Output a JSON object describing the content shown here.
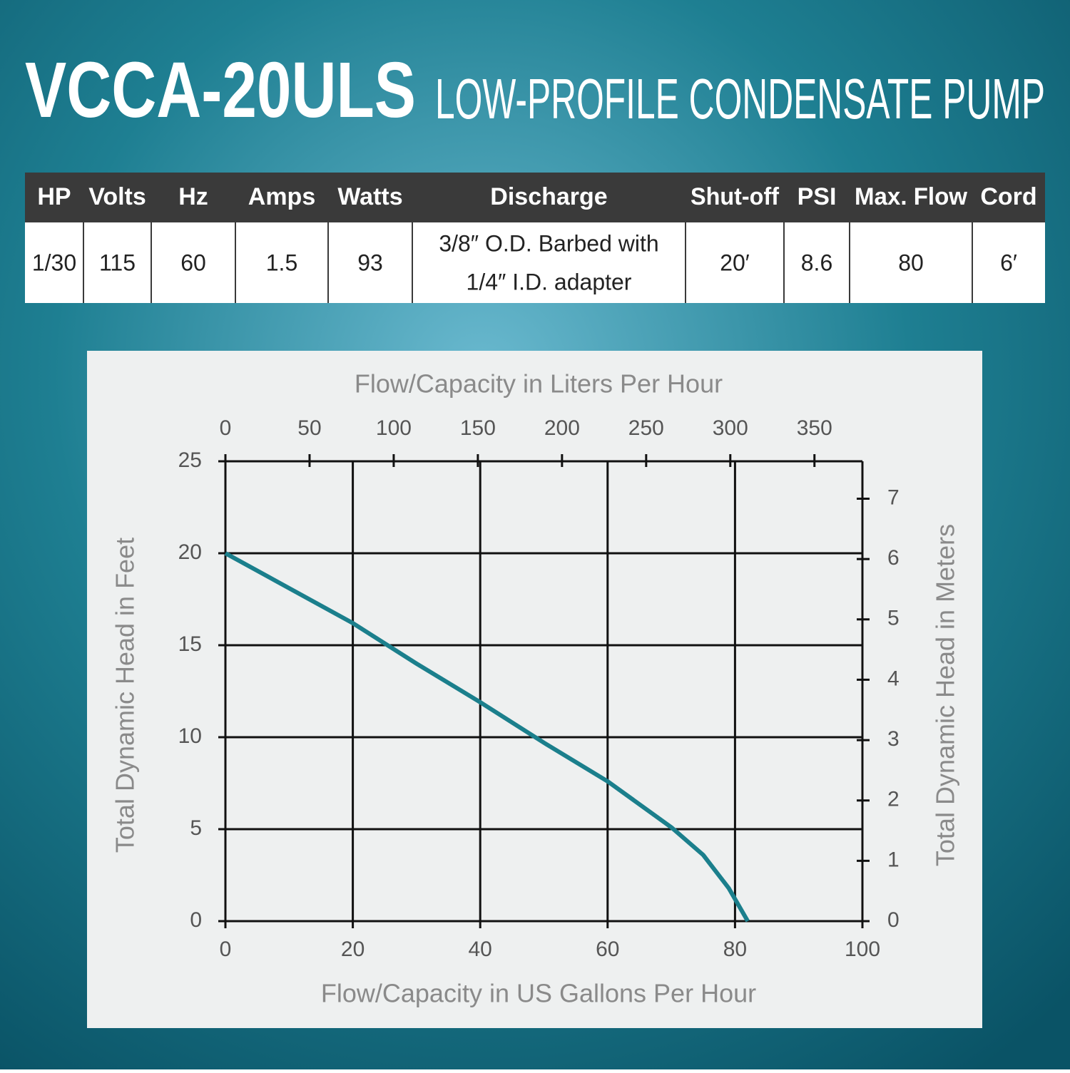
{
  "header": {
    "model": "VCCA-20ULS",
    "subtitle": "LOW-PROFILE CONDENSATE PUMP"
  },
  "table": {
    "columns": [
      "HP",
      "Volts",
      "Hz",
      "Amps",
      "Watts",
      "Discharge",
      "Shut-off",
      "PSI",
      "Max. Flow",
      "Cord"
    ],
    "rows": [
      [
        "1/30",
        "115",
        "60",
        "1.5",
        "93",
        [
          "3/8″ O.D. Barbed with",
          "1/4″ I.D. adapter"
        ],
        "20′",
        "8.6",
        "80",
        "6′"
      ]
    ]
  },
  "chart_data": {
    "type": "line",
    "x_label": "Flow/Capacity in US Gallons Per Hour",
    "x2_label": "Flow/Capacity in Liters Per Hour",
    "y_label": "Total Dynamic Head in Feet",
    "y2_label": "Total Dynamic Head in Meters",
    "x": [
      0,
      20,
      30,
      40,
      50,
      60,
      70,
      75,
      79,
      82
    ],
    "values": [
      20,
      16.2,
      14,
      11.9,
      9.7,
      7.6,
      5.1,
      3.6,
      1.8,
      0
    ],
    "color": "#1b7f8c",
    "xlim": [
      0,
      100
    ],
    "xticks": [
      0,
      20,
      40,
      60,
      80,
      100
    ],
    "x2lim": [
      0,
      378.5
    ],
    "x2ticks": [
      0,
      50,
      100,
      150,
      200,
      250,
      300,
      350
    ],
    "ylim": [
      0,
      25
    ],
    "yticks": [
      0,
      5,
      10,
      15,
      20,
      25
    ],
    "y2lim": [
      0,
      7.62
    ],
    "y2ticks": [
      0,
      1,
      2,
      3,
      4,
      5,
      6,
      7
    ],
    "grid": true
  }
}
